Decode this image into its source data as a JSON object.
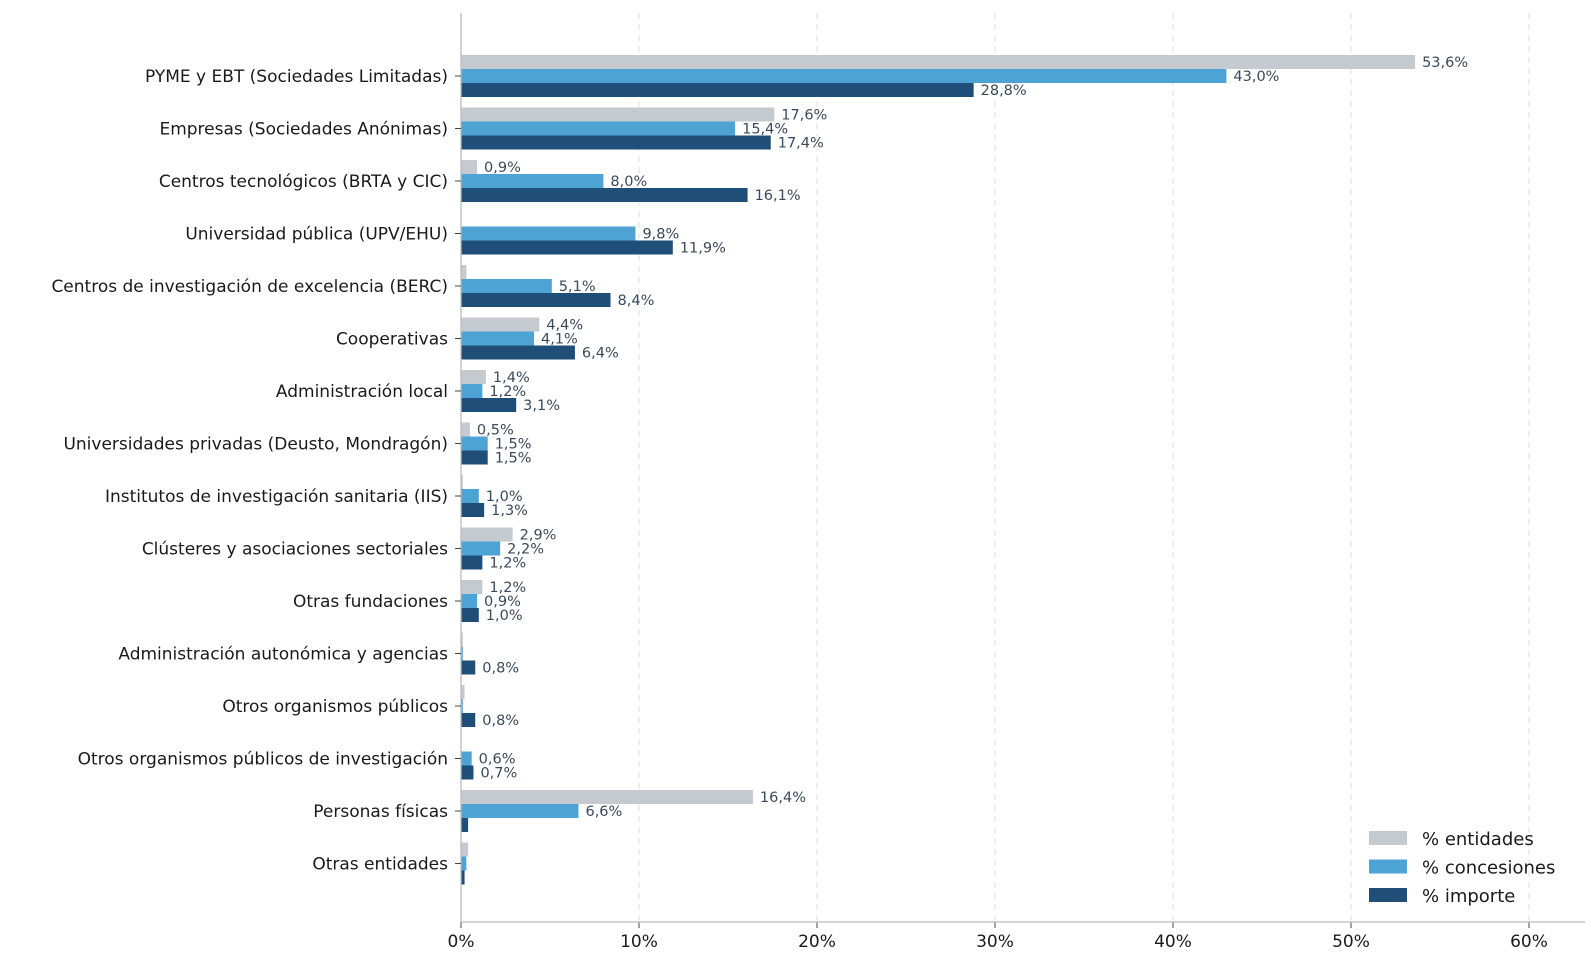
{
  "chart_data": {
    "type": "bar",
    "orientation": "horizontal",
    "categories": [
      "PYME y EBT (Sociedades Limitadas)",
      "Empresas (Sociedades Anónimas)",
      "Centros tecnológicos (BRTA y CIC)",
      "Universidad pública (UPV/EHU)",
      "Centros de investigación de excelencia (BERC)",
      "Cooperativas",
      "Administración local",
      "Universidades privadas (Deusto, Mondragón)",
      "Institutos de investigación sanitaria (IIS)",
      "Clústeres y asociaciones sectoriales",
      "Otras fundaciones",
      "Administración autonómica y agencias",
      "Otros organismos públicos",
      "Otros organismos públicos de investigación",
      "Personas físicas",
      "Otras entidades"
    ],
    "series": [
      {
        "name": "% entidades",
        "color": "#c5cad1",
        "values": [
          53.6,
          17.6,
          0.9,
          0.0,
          0.3,
          4.4,
          1.4,
          0.5,
          0.1,
          2.9,
          1.2,
          0.1,
          0.2,
          0.0,
          16.4,
          0.4
        ],
        "labels": [
          "53,6%",
          "17,6%",
          "0,9%",
          "",
          "",
          "4,4%",
          "1,4%",
          "0,5%",
          "",
          "2,9%",
          "1,2%",
          "",
          "",
          "",
          "16,4%",
          ""
        ]
      },
      {
        "name": "% concesiones",
        "color": "#4da3d4",
        "values": [
          43.0,
          15.4,
          8.0,
          9.8,
          5.1,
          4.1,
          1.2,
          1.5,
          1.0,
          2.2,
          0.9,
          0.1,
          0.1,
          0.6,
          6.6,
          0.3
        ],
        "labels": [
          "43,0%",
          "15,4%",
          "8,0%",
          "9,8%",
          "5,1%",
          "4,1%",
          "1,2%",
          "1,5%",
          "1,0%",
          "2,2%",
          "0,9%",
          "",
          "",
          "0,6%",
          "6,6%",
          ""
        ]
      },
      {
        "name": "% importe",
        "color": "#1f4e79",
        "values": [
          28.8,
          17.4,
          16.1,
          11.9,
          8.4,
          6.4,
          3.1,
          1.5,
          1.3,
          1.2,
          1.0,
          0.8,
          0.8,
          0.7,
          0.4,
          0.2
        ],
        "labels": [
          "28,8%",
          "17,4%",
          "16,1%",
          "11,9%",
          "8,4%",
          "6,4%",
          "3,1%",
          "1,5%",
          "1,3%",
          "1,2%",
          "1,0%",
          "0,8%",
          "0,8%",
          "0,7%",
          "",
          ""
        ]
      }
    ],
    "xticks": [
      0,
      10,
      20,
      30,
      40,
      50,
      60
    ],
    "xtick_labels": [
      "0%",
      "10%",
      "20%",
      "30%",
      "40%",
      "50%",
      "60%"
    ],
    "xlim": [
      0,
      63
    ],
    "grid": "vertical-dashed",
    "legend_position": "bottom-right"
  }
}
